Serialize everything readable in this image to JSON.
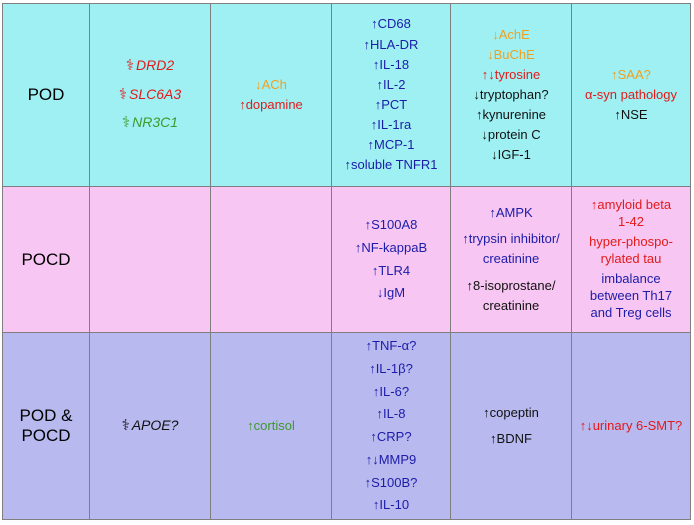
{
  "rows": [
    {
      "label": "POD",
      "genes": [
        {
          "name": "DRD2",
          "color": "#e21a1a"
        },
        {
          "name": "SLC6A3",
          "color": "#e21a1a"
        },
        {
          "name": "NR3C1",
          "color": "#3d9a2b"
        }
      ],
      "neuro": [
        {
          "text": "↓ACh",
          "color": "#f0a020"
        },
        {
          "text": "↑dopamine",
          "color": "#e21a1a"
        }
      ],
      "inflammatory": [
        "↑CD68",
        "↑HLA-DR",
        "↑IL-18",
        "↑IL-2",
        "↑PCT",
        "↑IL-1ra",
        "↑MCP-1",
        "↑soluble TNFR1"
      ],
      "metabolic": [
        {
          "text": "↓AchE",
          "color": "#f0a020"
        },
        {
          "text": "↓BuChE",
          "color": "#f0a020"
        },
        {
          "text": "↑↓tyrosine",
          "color": "#e21a1a"
        },
        {
          "text": "↓tryptophan?",
          "color": "#111111"
        },
        {
          "text": "↑kynurenine",
          "color": "#111111"
        },
        {
          "text": "↓protein C",
          "color": "#111111"
        },
        {
          "text": "↓IGF-1",
          "color": "#111111"
        }
      ],
      "other": [
        {
          "text": "↑SAA?",
          "color": "#f0a020"
        },
        {
          "text": "α-syn pathology",
          "color": "#e21a1a"
        },
        {
          "text": "↑NSE",
          "color": "#111111"
        }
      ]
    },
    {
      "label": "POCD",
      "inflammatory": [
        "↑S100A8",
        "↑NF-kappaB",
        "↑TLR4",
        "↓IgM"
      ],
      "metabolic": [
        {
          "text": "↑AMPK",
          "color": "#1c1ca8"
        },
        {
          "text": "↑trypsin inhibitor/",
          "color": "#1c1ca8"
        },
        {
          "text": "creatinine",
          "color": "#1c1ca8"
        },
        {
          "text": "↑8-isoprostane/",
          "color": "#111111"
        },
        {
          "text": "creatinine",
          "color": "#111111"
        }
      ],
      "other": [
        {
          "text": "↑amyloid beta",
          "color": "#e21a1a"
        },
        {
          "text": "1-42",
          "color": "#e21a1a"
        },
        {
          "text": "hyper-phospo-",
          "color": "#e21a1a"
        },
        {
          "text": "rylated tau",
          "color": "#e21a1a"
        },
        {
          "text": "imbalance",
          "color": "#1c1ca8"
        },
        {
          "text": "between Th17",
          "color": "#1c1ca8"
        },
        {
          "text": "and Treg cells",
          "color": "#1c1ca8"
        }
      ]
    },
    {
      "label_line1": "POD &",
      "label_line2": "POCD",
      "genes": [
        {
          "name": "APOE?",
          "color": "#111111"
        }
      ],
      "neuro": [
        {
          "text": "↑cortisol",
          "color": "#3d9a2b"
        }
      ],
      "inflammatory": [
        "↑TNF-α?",
        "↑IL-1β?",
        "↑IL-6?",
        "↑IL-8",
        "↑CRP?",
        "↑↓MMP9",
        "↑S100B?",
        "↑IL-10"
      ],
      "metabolic": [
        {
          "text": "↑copeptin",
          "color": "#111111"
        },
        {
          "text": "↑BDNF",
          "color": "#111111"
        }
      ],
      "other": [
        {
          "text": "↑↓urinary 6-SMT?",
          "color": "#e21a1a"
        }
      ]
    }
  ]
}
